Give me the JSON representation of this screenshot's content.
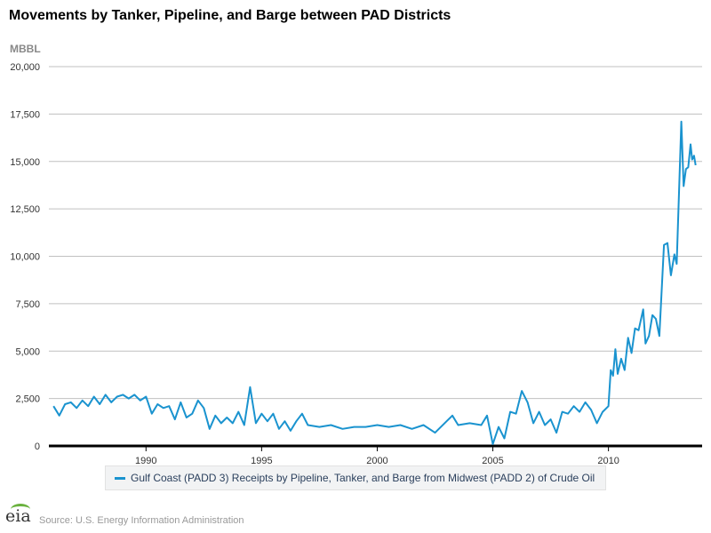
{
  "title": "Movements by Tanker, Pipeline, and Barge between PAD Districts",
  "unit": "MBBL",
  "legend_label": "Gulf Coast (PADD 3) Receipts by Pipeline, Tanker, and Barge from Midwest (PADD 2) of Crude Oil",
  "source": "Source: U.S. Energy Information Administration",
  "logo_text": "eia",
  "colors": {
    "series": "#1a93cf",
    "grid": "#c0c0c0"
  },
  "chart_data": {
    "type": "line",
    "title": "Movements by Tanker, Pipeline, and Barge between PAD Districts",
    "ylabel": "MBBL",
    "xlabel": "",
    "ylim": [
      0,
      20000
    ],
    "xlim": [
      1985.8,
      2014.05
    ],
    "yticks": [
      0,
      2500,
      5000,
      7500,
      10000,
      12500,
      15000,
      17500,
      20000
    ],
    "ytick_labels": [
      "0",
      "2,500",
      "5,000",
      "7,500",
      "10,000",
      "12,500",
      "15,000",
      "17,500",
      "20,000"
    ],
    "xticks": [
      1990,
      1995,
      2000,
      2005,
      2010
    ],
    "xtick_labels": [
      "1990",
      "1995",
      "2000",
      "2005",
      "2010"
    ],
    "grid": true,
    "legend_position": "bottom",
    "series": [
      {
        "name": "Gulf Coast (PADD 3) Receipts by Pipeline, Tanker, and Barge from Midwest (PADD 2) of Crude Oil",
        "x": [
          1986.0,
          1986.25,
          1986.5,
          1986.75,
          1987.0,
          1987.25,
          1987.5,
          1987.75,
          1988.0,
          1988.25,
          1988.5,
          1988.75,
          1989.0,
          1989.25,
          1989.5,
          1989.75,
          1990.0,
          1990.25,
          1990.5,
          1990.75,
          1991.0,
          1991.25,
          1991.5,
          1991.75,
          1992.0,
          1992.25,
          1992.5,
          1992.75,
          1993.0,
          1993.25,
          1993.5,
          1993.75,
          1994.0,
          1994.25,
          1994.5,
          1994.75,
          1995.0,
          1995.25,
          1995.5,
          1995.75,
          1996.0,
          1996.25,
          1996.5,
          1996.75,
          1997.0,
          1997.5,
          1998.0,
          1998.5,
          1999.0,
          1999.5,
          2000.0,
          2000.5,
          2001.0,
          2001.5,
          2002.0,
          2002.5,
          2003.0,
          2003.25,
          2003.5,
          2004.0,
          2004.5,
          2004.75,
          2005.0,
          2005.25,
          2005.5,
          2005.75,
          2006.0,
          2006.25,
          2006.5,
          2006.75,
          2007.0,
          2007.25,
          2007.5,
          2007.75,
          2008.0,
          2008.25,
          2008.5,
          2008.75,
          2009.0,
          2009.25,
          2009.5,
          2009.75,
          2010.0,
          2010.1,
          2010.2,
          2010.3,
          2010.4,
          2010.55,
          2010.7,
          2010.85,
          2011.0,
          2011.15,
          2011.3,
          2011.5,
          2011.6,
          2011.75,
          2011.9,
          2012.05,
          2012.2,
          2012.4,
          2012.55,
          2012.7,
          2012.85,
          2012.95,
          2013.15,
          2013.25,
          2013.35,
          2013.45,
          2013.55,
          2013.62,
          2013.7,
          2013.77
        ],
        "values": [
          2100,
          1600,
          2200,
          2300,
          2000,
          2400,
          2100,
          2600,
          2200,
          2700,
          2300,
          2600,
          2700,
          2500,
          2700,
          2400,
          2600,
          1700,
          2200,
          2000,
          2100,
          1400,
          2300,
          1500,
          1700,
          2400,
          2000,
          900,
          1600,
          1200,
          1500,
          1200,
          1800,
          1100,
          3100,
          1200,
          1700,
          1300,
          1700,
          900,
          1300,
          800,
          1300,
          1700,
          1100,
          1000,
          1100,
          900,
          1000,
          1000,
          1100,
          1000,
          1100,
          900,
          1100,
          700,
          1300,
          1600,
          1100,
          1200,
          1100,
          1600,
          100,
          1000,
          400,
          1800,
          1700,
          2900,
          2300,
          1200,
          1800,
          1100,
          1400,
          700,
          1800,
          1700,
          2100,
          1800,
          2300,
          1900,
          1200,
          1800,
          2100,
          4000,
          3700,
          5100,
          3800,
          4600,
          4000,
          5700,
          4900,
          6200,
          6100,
          7200,
          5400,
          5800,
          6900,
          6700,
          5800,
          10600,
          10700,
          9000,
          10100,
          9600,
          17100,
          13700,
          14600,
          14700,
          15900,
          15100,
          15300,
          14800
        ]
      }
    ]
  }
}
